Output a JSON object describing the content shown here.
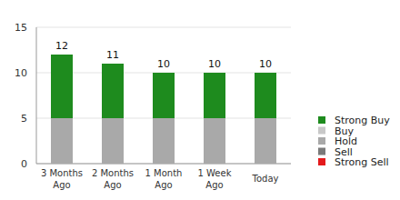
{
  "chart_data": {
    "type": "bar",
    "stacked": true,
    "grid": true,
    "legend": "right",
    "categories": [
      "3 Months Ago",
      "2 Months Ago",
      "1 Month Ago",
      "1 Week Ago",
      "Today"
    ],
    "series": [
      {
        "name": "Strong Buy",
        "color": "#1e8b1e",
        "values": [
          7,
          6,
          5,
          5,
          5
        ]
      },
      {
        "name": "Buy",
        "color": "#c8c8c8",
        "values": [
          0,
          0,
          0,
          0,
          0
        ]
      },
      {
        "name": "Hold",
        "color": "#a9a9a9",
        "values": [
          5,
          5,
          5,
          5,
          5
        ]
      },
      {
        "name": "Sell",
        "color": "#7a7a7a",
        "values": [
          0,
          0,
          0,
          0,
          0
        ]
      },
      {
        "name": "Strong Sell",
        "color": "#e41a1c",
        "values": [
          0,
          0,
          0,
          0,
          0
        ]
      }
    ],
    "totals": [
      12,
      11,
      10,
      10,
      10
    ],
    "ylim": [
      0,
      15
    ],
    "yticks": [
      0,
      5,
      10,
      15
    ]
  }
}
